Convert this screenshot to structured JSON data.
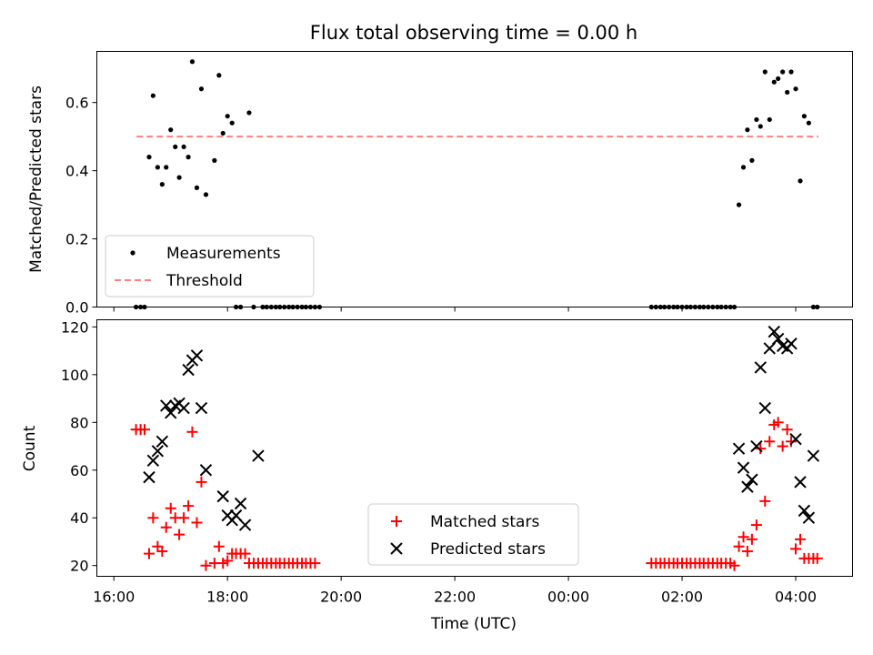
{
  "chart_data": [
    {
      "type": "scatter",
      "title": "Flux total observing time = 0.00 h",
      "ylabel": "Matched/Predicted stars",
      "xlabel": "",
      "ylim": [
        0,
        0.75
      ],
      "yticks": [
        "0.0",
        "0.2",
        "0.4",
        "0.6"
      ],
      "xlim": [
        15.7,
        29.0
      ],
      "legend": {
        "placement": "lower-left",
        "entries": [
          "Measurements",
          "Threshold"
        ]
      },
      "threshold": {
        "name": "Threshold",
        "value": 0.5,
        "x": [
          16.4,
          28.4
        ],
        "color": "#ff8080"
      },
      "series": [
        {
          "name": "Measurements",
          "color": "#000000",
          "x": [
            16.39,
            16.47,
            16.54,
            16.62,
            16.69,
            16.77,
            16.85,
            16.92,
            17.0,
            17.08,
            17.15,
            17.23,
            17.31,
            17.38,
            17.46,
            17.54,
            17.62,
            17.77,
            17.85,
            17.92,
            18.0,
            18.08,
            18.15,
            18.23,
            18.38,
            18.46,
            18.62,
            18.69,
            18.77,
            18.85,
            18.92,
            19.0,
            19.08,
            19.15,
            19.23,
            19.31,
            19.38,
            19.46,
            19.54,
            19.62,
            25.46,
            25.54,
            25.62,
            25.69,
            25.77,
            25.85,
            25.92,
            26.0,
            26.08,
            26.15,
            26.23,
            26.31,
            26.38,
            26.46,
            26.54,
            26.62,
            26.69,
            26.77,
            26.85,
            26.92,
            27.0,
            27.08,
            27.15,
            27.23,
            27.31,
            27.38,
            27.46,
            27.54,
            27.62,
            27.69,
            27.77,
            27.85,
            27.92,
            28.0,
            28.08,
            28.15,
            28.23,
            28.31,
            28.38
          ],
          "y": [
            0,
            0,
            0,
            0.44,
            0.62,
            0.41,
            0.36,
            0.41,
            0.52,
            0.47,
            0.38,
            0.47,
            0.44,
            0.72,
            0.35,
            0.64,
            0.33,
            0.43,
            0.68,
            0.51,
            0.56,
            0.54,
            0,
            0,
            0.57,
            0,
            0,
            0,
            0,
            0,
            0,
            0,
            0,
            0,
            0,
            0,
            0,
            0,
            0,
            0,
            0,
            0,
            0,
            0,
            0,
            0,
            0,
            0,
            0,
            0,
            0,
            0,
            0,
            0,
            0,
            0,
            0,
            0,
            0,
            0,
            0.3,
            0.41,
            0.52,
            0.43,
            0.55,
            0.53,
            0.69,
            0.55,
            0.66,
            0.67,
            0.69,
            0.63,
            0.69,
            0.64,
            0.37,
            0.56,
            0.54,
            0,
            0
          ]
        }
      ]
    },
    {
      "type": "scatter",
      "title": "",
      "ylabel": "Count",
      "xlabel": "Time (UTC)",
      "ylim": [
        15.5,
        123
      ],
      "yticks": [
        "20",
        "40",
        "60",
        "80",
        "100",
        "120"
      ],
      "xlim": [
        15.7,
        29.0
      ],
      "xticks": [
        {
          "value": 16,
          "label": "16:00"
        },
        {
          "value": 18,
          "label": "18:00"
        },
        {
          "value": 20,
          "label": "20:00"
        },
        {
          "value": 22,
          "label": "22:00"
        },
        {
          "value": 24,
          "label": "00:00"
        },
        {
          "value": 26,
          "label": "02:00"
        },
        {
          "value": 28,
          "label": "04:00"
        }
      ],
      "legend": {
        "placement": "lower-center",
        "entries": [
          "Matched stars",
          "Predicted stars"
        ]
      },
      "series": [
        {
          "name": "Matched stars",
          "marker": "plus",
          "color": "#ff0000",
          "x": [
            16.39,
            16.47,
            16.54,
            16.62,
            16.69,
            16.77,
            16.85,
            16.92,
            17.0,
            17.08,
            17.15,
            17.23,
            17.31,
            17.38,
            17.46,
            17.54,
            17.62,
            17.77,
            17.85,
            17.92,
            18.0,
            18.08,
            18.15,
            18.23,
            18.31,
            18.38,
            18.46,
            18.54,
            18.62,
            18.69,
            18.77,
            18.85,
            18.92,
            19.0,
            19.08,
            19.15,
            19.23,
            19.31,
            19.38,
            19.46,
            19.54,
            25.46,
            25.54,
            25.62,
            25.69,
            25.77,
            25.85,
            25.92,
            26.0,
            26.08,
            26.15,
            26.23,
            26.31,
            26.38,
            26.46,
            26.54,
            26.62,
            26.69,
            26.77,
            26.85,
            26.92,
            27.0,
            27.08,
            27.15,
            27.23,
            27.31,
            27.38,
            27.46,
            27.54,
            27.62,
            27.69,
            27.77,
            27.85,
            27.92,
            28.0,
            28.08,
            28.15,
            28.23,
            28.31,
            28.38
          ],
          "y": [
            77,
            77,
            77,
            25,
            40,
            28,
            26,
            36,
            44,
            40,
            33,
            40,
            45,
            76,
            38,
            55,
            20,
            21,
            28,
            21,
            22,
            25,
            25,
            25,
            25,
            21,
            21,
            21,
            21,
            21,
            21,
            21,
            21,
            21,
            21,
            21,
            21,
            21,
            21,
            21,
            21,
            21,
            21,
            21,
            21,
            21,
            21,
            21,
            21,
            21,
            21,
            21,
            21,
            21,
            21,
            21,
            21,
            21,
            21,
            21,
            20,
            28,
            32,
            26,
            31,
            37,
            69,
            47,
            72,
            79,
            80,
            70,
            77,
            72,
            27,
            31,
            23,
            23,
            23,
            23
          ]
        },
        {
          "name": "Predicted stars",
          "marker": "x",
          "color": "#000000",
          "x": [
            16.62,
            16.69,
            16.77,
            16.85,
            16.92,
            17.0,
            17.08,
            17.15,
            17.23,
            17.31,
            17.38,
            17.46,
            17.54,
            17.62,
            17.92,
            18.0,
            18.08,
            18.15,
            18.23,
            18.31,
            18.54,
            27.0,
            27.08,
            27.15,
            27.23,
            27.31,
            27.38,
            27.46,
            27.54,
            27.62,
            27.69,
            27.77,
            27.85,
            27.92,
            28.0,
            28.08,
            28.15,
            28.23,
            28.31
          ],
          "y": [
            57,
            64,
            68,
            72,
            87,
            84,
            87,
            88,
            86,
            102,
            106,
            108,
            86,
            60,
            49,
            41,
            39,
            41,
            46,
            37,
            66,
            69,
            61,
            53,
            56,
            70,
            103,
            86,
            111,
            118,
            115,
            112,
            111,
            113,
            73,
            55,
            43,
            40,
            66
          ]
        }
      ]
    }
  ]
}
